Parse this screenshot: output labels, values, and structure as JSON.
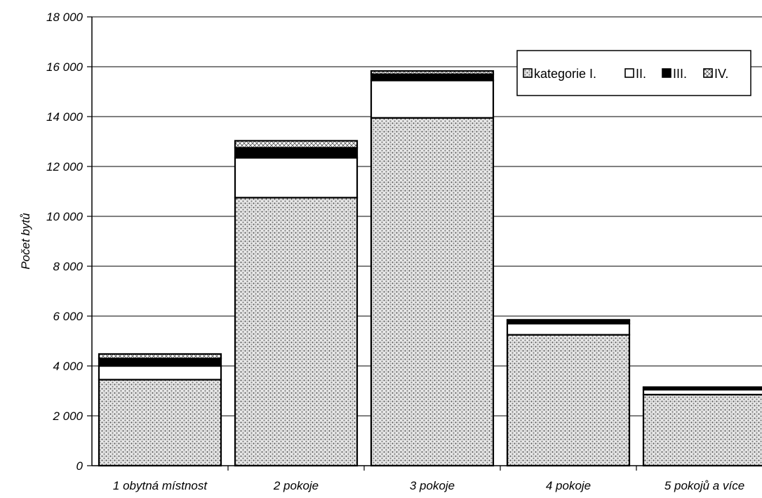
{
  "chart_data": {
    "type": "bar",
    "stacked": true,
    "title": "",
    "xlabel": "",
    "ylabel": "Počet bytů",
    "ylim": [
      0,
      18000
    ],
    "yticks": [
      0,
      2000,
      4000,
      6000,
      8000,
      10000,
      12000,
      14000,
      16000,
      18000
    ],
    "ytick_labels": [
      "0",
      "2 000",
      "4 000",
      "6 000",
      "8 000",
      "10 000",
      "12 000",
      "14 000",
      "16 000",
      "18 000"
    ],
    "categories": [
      "1 obytná místnost",
      "2 pokoje",
      "3 pokoje",
      "4 pokoje",
      "5 pokojů a více"
    ],
    "series": [
      {
        "name": "kategorie I.",
        "pattern": "dotted",
        "values": [
          3450,
          10750,
          13950,
          5250,
          2850
        ]
      },
      {
        "name": "II.",
        "pattern": "white",
        "values": [
          550,
          1600,
          1500,
          450,
          200
        ]
      },
      {
        "name": "III.",
        "pattern": "black",
        "values": [
          300,
          400,
          250,
          120,
          80
        ]
      },
      {
        "name": "IV.",
        "pattern": "crosshatch",
        "values": [
          180,
          280,
          130,
          30,
          20
        ]
      }
    ],
    "grid": true,
    "legend_position": "top-right",
    "colors": {
      "background": "#ffffff",
      "ink": "#000000",
      "dot_fill": "#6e6e6e",
      "bar_base": "#e9e9e9"
    }
  }
}
